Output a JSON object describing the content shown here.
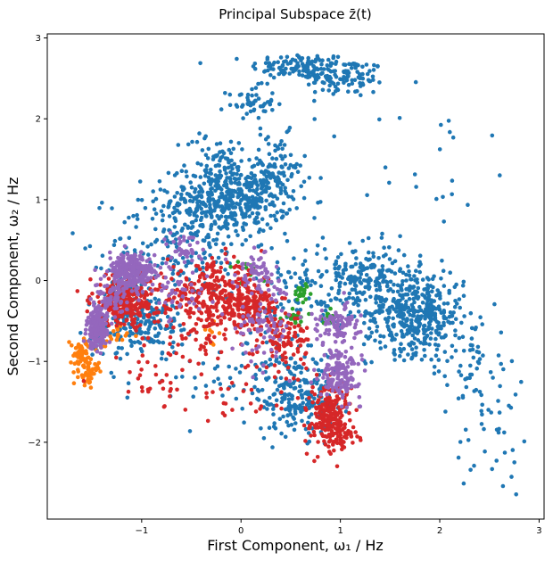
{
  "chart_data": {
    "type": "scatter",
    "title": "Principal Subspace z̄(t)",
    "xlabel": "First Component, ω₁ / Hz",
    "ylabel": "Second Component, ω₂ / Hz",
    "xlim": [
      -1.95,
      3.05
    ],
    "ylim": [
      -2.95,
      3.05
    ],
    "xticks": [
      -1,
      0,
      1,
      2,
      3
    ],
    "yticks": [
      -2,
      -1,
      0,
      1,
      2,
      3
    ],
    "xtick_labels": [
      "−1",
      "0",
      "1",
      "2",
      "3"
    ],
    "ytick_labels": [
      "−2",
      "−1",
      "0",
      "1",
      "2",
      "3"
    ],
    "grid": false,
    "legend": "none",
    "series": [
      {
        "color": "#1f77b4",
        "clusters": [
          {
            "cx": 0.6,
            "cy": 2.65,
            "sx": 0.25,
            "sy": 0.08,
            "n": 120
          },
          {
            "cx": 1.05,
            "cy": 2.5,
            "sx": 0.2,
            "sy": 0.12,
            "n": 100
          },
          {
            "cx": 0.1,
            "cy": 2.2,
            "sx": 0.12,
            "sy": 0.1,
            "n": 50
          },
          {
            "cx": -0.1,
            "cy": 1.0,
            "sx": 0.3,
            "sy": 0.2,
            "n": 450
          },
          {
            "cx": 0.35,
            "cy": 1.4,
            "sx": 0.15,
            "sy": 0.2,
            "n": 80
          },
          {
            "cx": -0.25,
            "cy": 1.5,
            "sx": 0.15,
            "sy": 0.18,
            "n": 60
          },
          {
            "cx": -0.6,
            "cy": 0.5,
            "sx": 0.35,
            "sy": 0.35,
            "n": 180
          },
          {
            "cx": 1.75,
            "cy": -0.4,
            "sx": 0.25,
            "sy": 0.25,
            "n": 420
          },
          {
            "cx": 1.3,
            "cy": 0.05,
            "sx": 0.2,
            "sy": 0.2,
            "n": 120
          },
          {
            "cx": 0.55,
            "cy": -1.4,
            "sx": 0.2,
            "sy": 0.25,
            "n": 220
          },
          {
            "cx": 0.8,
            "cy": -0.1,
            "sx": 0.35,
            "sy": 0.35,
            "n": 150
          },
          {
            "cx": -1.15,
            "cy": -0.4,
            "sx": 0.2,
            "sy": 0.3,
            "n": 150
          },
          {
            "cx": -0.9,
            "cy": -0.5,
            "sx": 0.2,
            "sy": 0.15,
            "n": 90
          },
          {
            "cx": 2.3,
            "cy": -1.0,
            "sx": 0.2,
            "sy": 0.3,
            "n": 60
          },
          {
            "cx": 2.55,
            "cy": -1.9,
            "sx": 0.2,
            "sy": 0.4,
            "n": 35
          },
          {
            "cx": 1.9,
            "cy": 1.5,
            "sx": 0.3,
            "sy": 0.6,
            "n": 25
          },
          {
            "cx": -0.2,
            "cy": -1.1,
            "sx": 0.5,
            "sy": 0.3,
            "n": 60
          }
        ]
      },
      {
        "color": "#ff7f0e",
        "clusters": [
          {
            "cx": -1.6,
            "cy": -0.92,
            "sx": 0.06,
            "sy": 0.1,
            "n": 70
          },
          {
            "cx": -1.53,
            "cy": -1.15,
            "sx": 0.05,
            "sy": 0.07,
            "n": 40
          },
          {
            "cx": -1.3,
            "cy": -0.7,
            "sx": 0.08,
            "sy": 0.08,
            "n": 20
          },
          {
            "cx": -0.3,
            "cy": -0.7,
            "sx": 0.05,
            "sy": 0.1,
            "n": 10
          }
        ]
      },
      {
        "color": "#2ca02c",
        "clusters": [
          {
            "cx": 0.62,
            "cy": -0.15,
            "sx": 0.05,
            "sy": 0.05,
            "n": 25
          },
          {
            "cx": 0.55,
            "cy": -0.45,
            "sx": 0.06,
            "sy": 0.05,
            "n": 20
          },
          {
            "cx": 0.85,
            "cy": -0.45,
            "sx": 0.05,
            "sy": 0.05,
            "n": 10
          },
          {
            "cx": 0.05,
            "cy": 0.1,
            "sx": 0.1,
            "sy": 0.1,
            "n": 10
          }
        ]
      },
      {
        "color": "#d62728",
        "clusters": [
          {
            "cx": -1.15,
            "cy": -0.25,
            "sx": 0.18,
            "sy": 0.15,
            "n": 250
          },
          {
            "cx": -0.25,
            "cy": -0.2,
            "sx": 0.25,
            "sy": 0.2,
            "n": 300
          },
          {
            "cx": 0.1,
            "cy": -0.35,
            "sx": 0.15,
            "sy": 0.15,
            "n": 150
          },
          {
            "cx": 0.45,
            "cy": -0.75,
            "sx": 0.12,
            "sy": 0.2,
            "n": 100
          },
          {
            "cx": 0.9,
            "cy": -1.65,
            "sx": 0.1,
            "sy": 0.2,
            "n": 200
          },
          {
            "cx": 0.95,
            "cy": -1.9,
            "sx": 0.15,
            "sy": 0.12,
            "n": 50
          },
          {
            "cx": -0.9,
            "cy": -1.3,
            "sx": 0.1,
            "sy": 0.15,
            "n": 20
          },
          {
            "cx": -0.5,
            "cy": -0.8,
            "sx": 0.3,
            "sy": 0.3,
            "n": 60
          },
          {
            "cx": 0.0,
            "cy": -1.5,
            "sx": 0.2,
            "sy": 0.15,
            "n": 20
          }
        ]
      },
      {
        "color": "#9467bd",
        "clusters": [
          {
            "cx": -1.45,
            "cy": -0.6,
            "sx": 0.05,
            "sy": 0.12,
            "n": 200
          },
          {
            "cx": -1.1,
            "cy": 0.1,
            "sx": 0.12,
            "sy": 0.12,
            "n": 250
          },
          {
            "cx": -1.3,
            "cy": -0.2,
            "sx": 0.08,
            "sy": 0.1,
            "n": 60
          },
          {
            "cx": 0.15,
            "cy": 0.1,
            "sx": 0.12,
            "sy": 0.1,
            "n": 60
          },
          {
            "cx": 0.25,
            "cy": -0.5,
            "sx": 0.15,
            "sy": 0.25,
            "n": 80
          },
          {
            "cx": 1.0,
            "cy": -1.15,
            "sx": 0.1,
            "sy": 0.15,
            "n": 150
          },
          {
            "cx": 0.95,
            "cy": -0.55,
            "sx": 0.12,
            "sy": 0.12,
            "n": 90
          },
          {
            "cx": -0.55,
            "cy": 0.4,
            "sx": 0.1,
            "sy": 0.1,
            "n": 40
          },
          {
            "cx": -0.6,
            "cy": -0.15,
            "sx": 0.15,
            "sy": 0.15,
            "n": 40
          }
        ]
      }
    ]
  }
}
